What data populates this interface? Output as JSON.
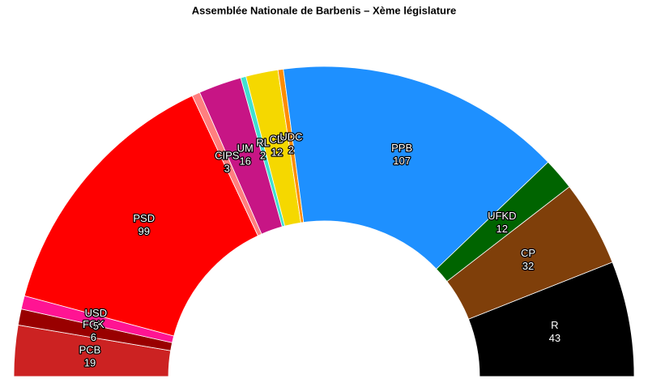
{
  "chart_data": {
    "type": "parliament",
    "title": "Assemblée Nationale de Barbenis – Xème législature",
    "categories": [
      "PCB",
      "FGK",
      "USD",
      "PSD",
      "CIPS",
      "UM",
      "RL",
      "CD",
      "UDC",
      "PPB",
      "UFKD",
      "CP",
      "R"
    ],
    "values": [
      19,
      6,
      5,
      99,
      3,
      16,
      2,
      12,
      2,
      107,
      12,
      32,
      43
    ],
    "colors": [
      "#cc2222",
      "#990000",
      "#ff1493",
      "#ff0000",
      "#ff7f7f",
      "#c71585",
      "#40e0d0",
      "#f5d800",
      "#ff8c00",
      "#1e90ff",
      "#006400",
      "#7f3f0a",
      "#000000"
    ]
  }
}
